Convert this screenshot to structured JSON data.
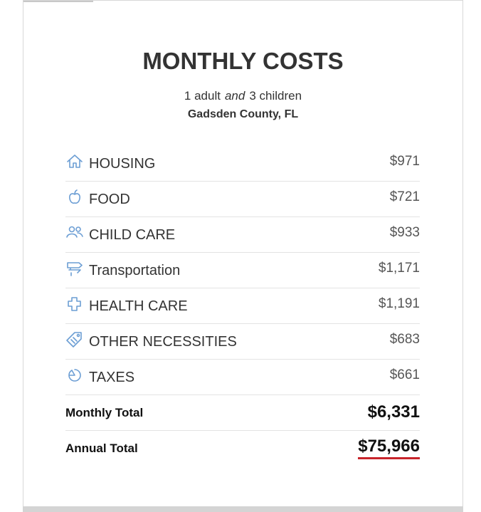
{
  "header": {
    "title": "MONTHLY COSTS",
    "family": {
      "adults": "1 adult",
      "conjunction": "and",
      "children": "3 children"
    },
    "location": "Gadsden County, FL"
  },
  "items": [
    {
      "label": "HOUSING",
      "amount": "$971"
    },
    {
      "label": "FOOD",
      "amount": "$721"
    },
    {
      "label": "CHILD CARE",
      "amount": "$933"
    },
    {
      "label": "Transportation",
      "amount": "$1,171"
    },
    {
      "label": "HEALTH CARE",
      "amount": "$1,191"
    },
    {
      "label": "OTHER NECESSITIES",
      "amount": "$683"
    },
    {
      "label": "TAXES",
      "amount": "$661"
    }
  ],
  "totals": {
    "monthly": {
      "label": "Monthly Total",
      "amount": "$6,331"
    },
    "annual": {
      "label": "Annual Total",
      "amount": "$75,966"
    }
  }
}
